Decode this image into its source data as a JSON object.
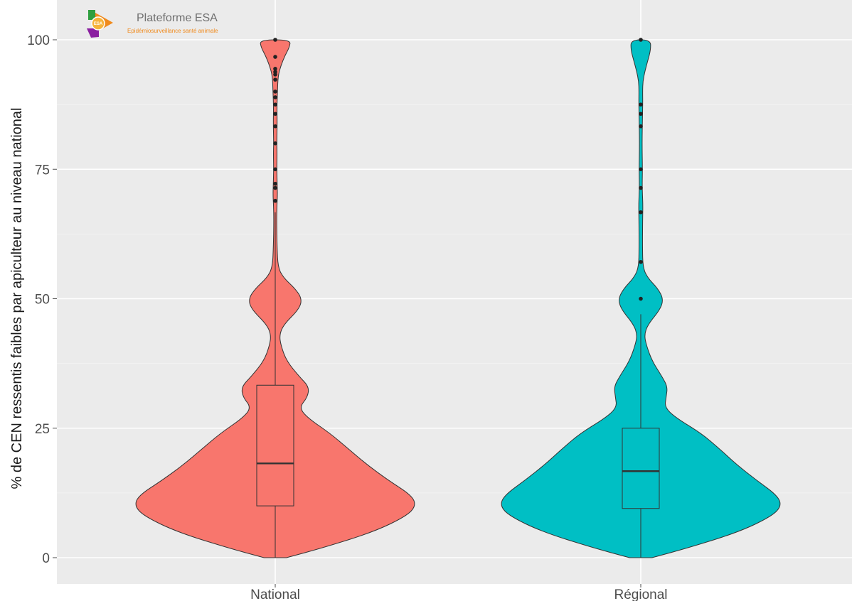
{
  "branding": {
    "title": "Plateforme ESA",
    "subtitle": "Epidémiosurveillance santé animale",
    "mark_text": "ESA",
    "colors": {
      "green": "#2e9e3f",
      "orange": "#f08a1c",
      "purple": "#8a1fa0"
    }
  },
  "chart_data": {
    "type": "violin",
    "title": "",
    "xlabel": "",
    "ylabel": "% de CEN ressentis faibles par apiculteur au niveau national",
    "ylim": [
      0,
      100
    ],
    "yticks": [
      0,
      25,
      50,
      75,
      100
    ],
    "grid": true,
    "legend": "none",
    "categories": [
      "National",
      "Régional"
    ],
    "series": [
      {
        "category": "National",
        "color": "#f8766d",
        "violin_profile": [
          [
            0,
            0.08
          ],
          [
            2,
            0.35
          ],
          [
            5,
            0.7
          ],
          [
            8,
            0.93
          ],
          [
            10,
            1.0
          ],
          [
            12,
            0.97
          ],
          [
            15,
            0.8
          ],
          [
            18,
            0.65
          ],
          [
            21,
            0.52
          ],
          [
            24,
            0.39
          ],
          [
            27,
            0.23
          ],
          [
            29,
            0.17
          ],
          [
            31,
            0.23
          ],
          [
            33,
            0.24
          ],
          [
            35,
            0.17
          ],
          [
            38,
            0.08
          ],
          [
            41,
            0.04
          ],
          [
            43,
            0.03
          ],
          [
            45,
            0.06
          ],
          [
            48,
            0.17
          ],
          [
            50,
            0.19
          ],
          [
            52,
            0.14
          ],
          [
            54,
            0.06
          ],
          [
            56,
            0.02
          ],
          [
            60,
            0.013
          ],
          [
            65,
            0.01
          ],
          [
            68,
            0.012
          ],
          [
            70,
            0.016
          ],
          [
            72,
            0.014
          ],
          [
            75,
            0.011
          ],
          [
            78,
            0.013
          ],
          [
            80,
            0.011
          ],
          [
            84,
            0.014
          ],
          [
            87,
            0.012
          ],
          [
            90,
            0.016
          ],
          [
            93,
            0.02
          ],
          [
            95,
            0.04
          ],
          [
            97,
            0.07
          ],
          [
            98.5,
            0.1
          ],
          [
            100,
            0.11
          ]
        ],
        "box": {
          "min": 0,
          "q1": 10,
          "median": 18.2,
          "q3": 33.3,
          "whisker_max": 66.7
        },
        "outliers": [
          68.9,
          71.4,
          72.2,
          75,
          80,
          83.3,
          85.7,
          87.5,
          88.9,
          90,
          92.3,
          93.3,
          93.8,
          94.4,
          96.7,
          100
        ]
      },
      {
        "category": "Régional",
        "color": "#00bfc4",
        "violin_profile": [
          [
            0,
            0.08
          ],
          [
            2,
            0.35
          ],
          [
            5,
            0.7
          ],
          [
            8,
            0.93
          ],
          [
            10,
            1.0
          ],
          [
            12,
            0.97
          ],
          [
            15,
            0.82
          ],
          [
            18,
            0.68
          ],
          [
            21,
            0.56
          ],
          [
            24,
            0.43
          ],
          [
            27,
            0.25
          ],
          [
            29,
            0.17
          ],
          [
            31,
            0.18
          ],
          [
            33,
            0.19
          ],
          [
            35,
            0.15
          ],
          [
            38,
            0.08
          ],
          [
            41,
            0.04
          ],
          [
            43,
            0.025
          ],
          [
            45,
            0.05
          ],
          [
            48,
            0.14
          ],
          [
            50,
            0.16
          ],
          [
            52,
            0.12
          ],
          [
            54,
            0.05
          ],
          [
            56,
            0.015
          ],
          [
            60,
            0.012
          ],
          [
            65,
            0.013
          ],
          [
            68,
            0.015
          ],
          [
            70,
            0.012
          ],
          [
            72,
            0.01
          ],
          [
            75,
            0.012
          ],
          [
            80,
            0.009
          ],
          [
            85,
            0.012
          ],
          [
            88,
            0.014
          ],
          [
            90,
            0.013
          ],
          [
            92,
            0.015
          ],
          [
            94,
            0.03
          ],
          [
            96,
            0.05
          ],
          [
            98,
            0.07
          ],
          [
            100,
            0.07
          ]
        ],
        "box": {
          "min": 0,
          "q1": 9.5,
          "median": 16.7,
          "q3": 25,
          "whisker_max": 47
        },
        "outliers": [
          50,
          57.1,
          66.7,
          71.4,
          75,
          83.3,
          85.7,
          87.5,
          100
        ]
      }
    ]
  }
}
